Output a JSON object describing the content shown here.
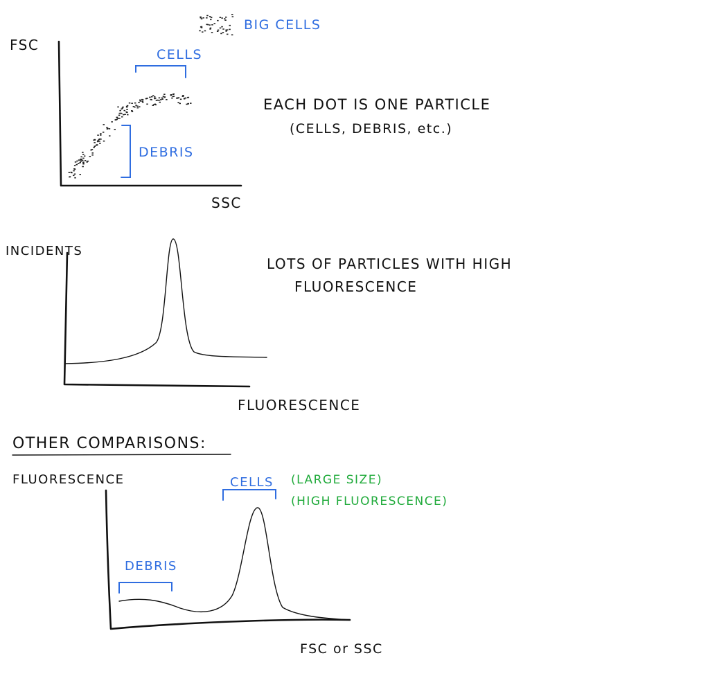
{
  "scatter_plot": {
    "y_label": "FSC",
    "x_label": "SSC",
    "annotations": [
      "BIG CELLS",
      "CELLS",
      "DEBRIS"
    ],
    "notes": [
      "EACH DOT IS ONE PARTICLE",
      "(CELLS, DEBRIS, etc.)"
    ]
  },
  "histogram": {
    "y_label": "INCIDENTS",
    "x_label": "FLUORESCENCE",
    "notes": [
      "LOTS OF PARTICLES WITH HIGH",
      "FLUORESCENCE"
    ]
  },
  "section_title": "OTHER COMPARISONS:",
  "comparison_plot": {
    "y_label": "FLUORESCENCE",
    "x_label": "FSC or SSC",
    "annotations": [
      "CELLS",
      "DEBRIS"
    ],
    "notes": [
      "(LARGE SIZE)",
      "(HIGH FLUORESCENCE)"
    ]
  }
}
